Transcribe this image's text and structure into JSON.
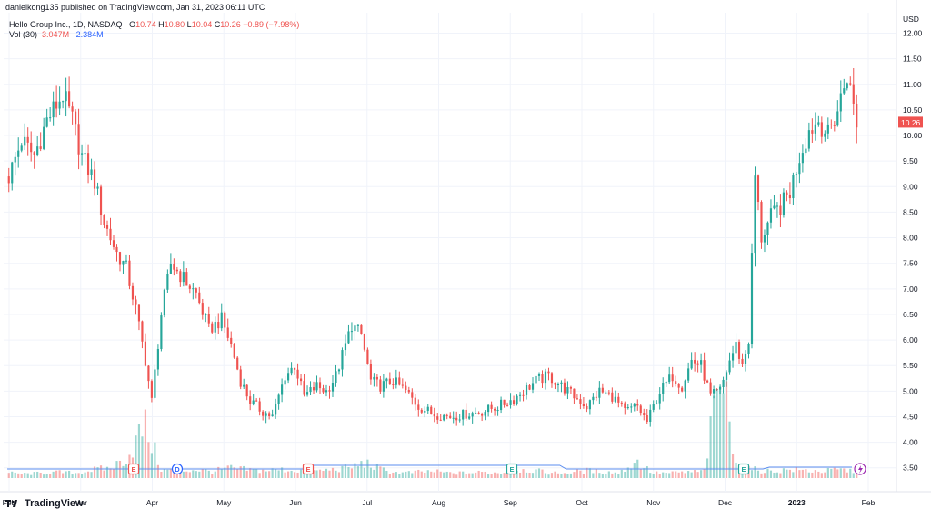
{
  "header": {
    "publisher_text": "danielkong135 published on TradingView.com, Jan 31, 2023 06:11 UTC"
  },
  "symbol": {
    "name": "Hello Group Inc., 1D, NASDAQ",
    "o_label": "O",
    "o_value": "10.74",
    "h_label": "H",
    "h_value": "10.80",
    "l_label": "L",
    "l_value": "10.04",
    "c_label": "C",
    "c_value": "10.26",
    "change": "−0.89 (−7.98%)"
  },
  "volume": {
    "label": "Vol (30)",
    "value": "3.047M",
    "ma_value": "2.384M"
  },
  "footer": {
    "brand": "TradingView"
  },
  "colors": {
    "up": "#26a69a",
    "down": "#ef5350",
    "ma_line": "#5b8def",
    "grid": "#f0f3fa"
  },
  "chart_data": {
    "type": "candlestick",
    "currency": "USD",
    "last_price": "10.26",
    "ylim": [
      3.3,
      12.4
    ],
    "y_ticks": [
      "3.50",
      "4.00",
      "4.50",
      "5.00",
      "5.50",
      "6.00",
      "6.50",
      "7.00",
      "7.50",
      "8.00",
      "8.50",
      "9.00",
      "9.50",
      "10.00",
      "10.50",
      "11.00",
      "11.50",
      "12.00"
    ],
    "x_ticks": [
      "Feb",
      "Mar",
      "Apr",
      "May",
      "Jun",
      "Jul",
      "Aug",
      "Sep",
      "Oct",
      "Nov",
      "Dec",
      "2023",
      "Feb"
    ],
    "events": [
      "E",
      "D",
      "E",
      "E",
      "E"
    ],
    "series": [
      {
        "name": "price_path",
        "points": [
          [
            0,
            9.2
          ],
          [
            4,
            9.9
          ],
          [
            8,
            9.6
          ],
          [
            12,
            10.3
          ],
          [
            17,
            10.8
          ],
          [
            20,
            10.3
          ],
          [
            23,
            9.6
          ],
          [
            27,
            9.1
          ],
          [
            30,
            8.3
          ],
          [
            34,
            7.7
          ],
          [
            37,
            7.4
          ],
          [
            40,
            6.6
          ],
          [
            43,
            5.6
          ],
          [
            45,
            4.8
          ],
          [
            48,
            6.5
          ],
          [
            51,
            7.5
          ],
          [
            55,
            7.2
          ],
          [
            59,
            6.9
          ],
          [
            63,
            6.2
          ],
          [
            67,
            6.4
          ],
          [
            70,
            5.9
          ],
          [
            73,
            5.2
          ],
          [
            76,
            4.8
          ],
          [
            80,
            4.6
          ],
          [
            83,
            4.5
          ],
          [
            87,
            5.3
          ],
          [
            90,
            5.5
          ],
          [
            93,
            4.9
          ],
          [
            97,
            5.1
          ],
          [
            100,
            5.0
          ],
          [
            103,
            5.3
          ],
          [
            106,
            5.9
          ],
          [
            108,
            6.3
          ],
          [
            111,
            6.1
          ],
          [
            114,
            5.2
          ],
          [
            117,
            5.1
          ],
          [
            121,
            5.2
          ],
          [
            125,
            5.0
          ],
          [
            129,
            4.7
          ],
          [
            134,
            4.55
          ],
          [
            139,
            4.5
          ],
          [
            144,
            4.55
          ],
          [
            149,
            4.6
          ],
          [
            154,
            4.7
          ],
          [
            159,
            4.85
          ],
          [
            162,
            5.0
          ],
          [
            166,
            5.2
          ],
          [
            170,
            5.3
          ],
          [
            174,
            5.1
          ],
          [
            178,
            4.9
          ],
          [
            182,
            4.7
          ],
          [
            186,
            5.0
          ],
          [
            190,
            4.9
          ],
          [
            194,
            4.6
          ],
          [
            198,
            4.7
          ],
          [
            201,
            4.4
          ],
          [
            205,
            5.0
          ],
          [
            209,
            5.3
          ],
          [
            212,
            5.1
          ],
          [
            215,
            5.6
          ],
          [
            218,
            5.5
          ],
          [
            221,
            4.9
          ],
          [
            224,
            5.0
          ],
          [
            227,
            5.6
          ],
          [
            229,
            5.9
          ],
          [
            231,
            5.5
          ],
          [
            233,
            6.0
          ],
          [
            235,
            9.2
          ],
          [
            237,
            8.0
          ],
          [
            240,
            8.4
          ],
          [
            243,
            8.6
          ],
          [
            246,
            8.9
          ],
          [
            249,
            9.6
          ],
          [
            252,
            10.1
          ],
          [
            255,
            10.3
          ],
          [
            258,
            10.0
          ],
          [
            261,
            10.5
          ],
          [
            264,
            11.2
          ],
          [
            267,
            10.26
          ]
        ]
      },
      {
        "name": "volume_path",
        "values": [
          0.3,
          0.25,
          0.3,
          0.35,
          0.3,
          0.5,
          0.6,
          1.2,
          3.2,
          0.5,
          0.4,
          0.5,
          0.4,
          0.6,
          0.5,
          0.45,
          0.5,
          0.45,
          0.4,
          0.5,
          0.6,
          0.9,
          0.5,
          0.3,
          0.35,
          0.4,
          0.3,
          0.3,
          0.35,
          0.3,
          0.5,
          0.45,
          0.3,
          0.3,
          0.45,
          0.4,
          0.3,
          1.0,
          0.3,
          0.3,
          0.35,
          0.4,
          6.3,
          0.6,
          0.5,
          0.4,
          0.5,
          0.45,
          0.4,
          0.5,
          0.4
        ]
      }
    ]
  }
}
